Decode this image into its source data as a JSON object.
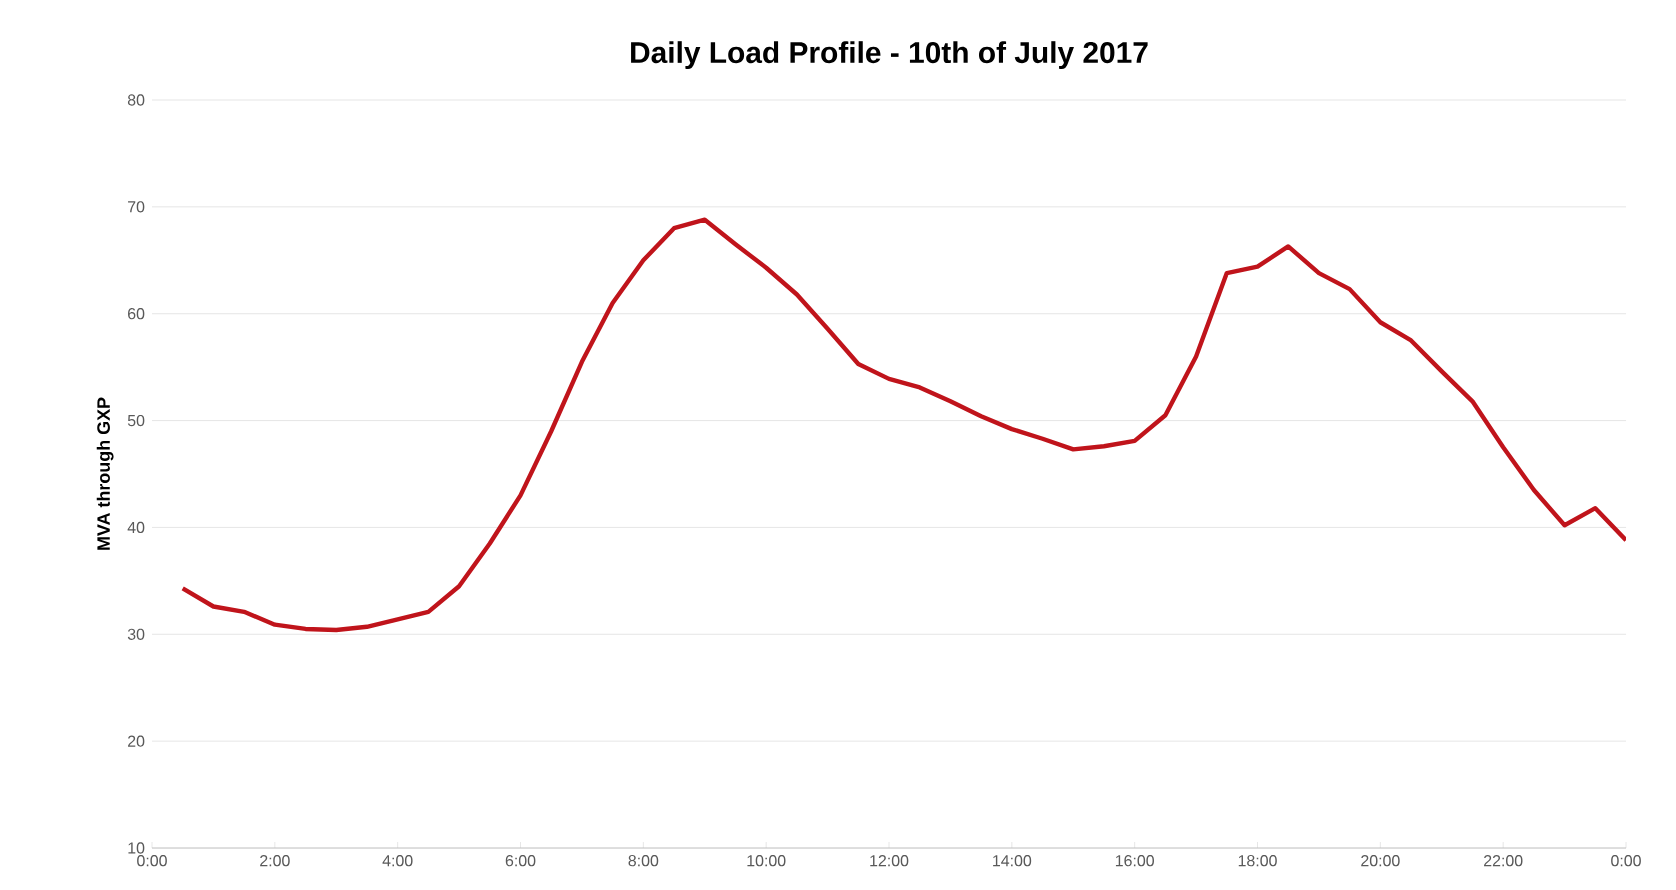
{
  "chart_data": {
    "type": "line",
    "title": "Daily Load Profile - 10th of July 2017",
    "ylabel": "MVA through GXP",
    "x": [
      0.5,
      1,
      1.5,
      2,
      2.5,
      3,
      3.5,
      4,
      4.5,
      5,
      5.5,
      6,
      6.5,
      7,
      7.5,
      8,
      8.5,
      9,
      9.5,
      10,
      10.5,
      11,
      11.5,
      12,
      12.5,
      13,
      13.5,
      14,
      14.5,
      15,
      15.5,
      16,
      16.5,
      17,
      17.5,
      18,
      18.5,
      19,
      19.5,
      20,
      20.5,
      21,
      21.5,
      22,
      22.5,
      23,
      23.5,
      24
    ],
    "series": [
      {
        "color": "#c0141b",
        "values": [
          34.3,
          32.6,
          32.1,
          30.9,
          30.5,
          30.4,
          30.7,
          31.4,
          32.1,
          34.5,
          38.5,
          43,
          49,
          55.5,
          61,
          65,
          68,
          68.8,
          66.5,
          64.3,
          61.8,
          58.6,
          55.3,
          53.9,
          53.1,
          51.8,
          50.4,
          49.2,
          48.3,
          47.3,
          47.6,
          48.1,
          50.5,
          56,
          63.8,
          64.4,
          66.3,
          63.8,
          62.3,
          59.2,
          57.5,
          54.6,
          51.8,
          47.5,
          43.5,
          40.2,
          41.8,
          38.8
        ]
      }
    ],
    "xlim": [
      0,
      24
    ],
    "xticks": [
      {
        "value": 0,
        "label": "0:00"
      },
      {
        "value": 2,
        "label": "2:00"
      },
      {
        "value": 4,
        "label": "4:00"
      },
      {
        "value": 6,
        "label": "6:00"
      },
      {
        "value": 8,
        "label": "8:00"
      },
      {
        "value": 10,
        "label": "10:00"
      },
      {
        "value": 12,
        "label": "12:00"
      },
      {
        "value": 14,
        "label": "14:00"
      },
      {
        "value": 16,
        "label": "16:00"
      },
      {
        "value": 18,
        "label": "18:00"
      },
      {
        "value": 20,
        "label": "20:00"
      },
      {
        "value": 22,
        "label": "22:00"
      },
      {
        "value": 24,
        "label": "0:00"
      }
    ],
    "ylim": [
      10,
      80
    ],
    "yticks": [
      10,
      20,
      30,
      40,
      50,
      60,
      70,
      80
    ],
    "grid": "y",
    "marker": "none",
    "line_style": "solid"
  }
}
